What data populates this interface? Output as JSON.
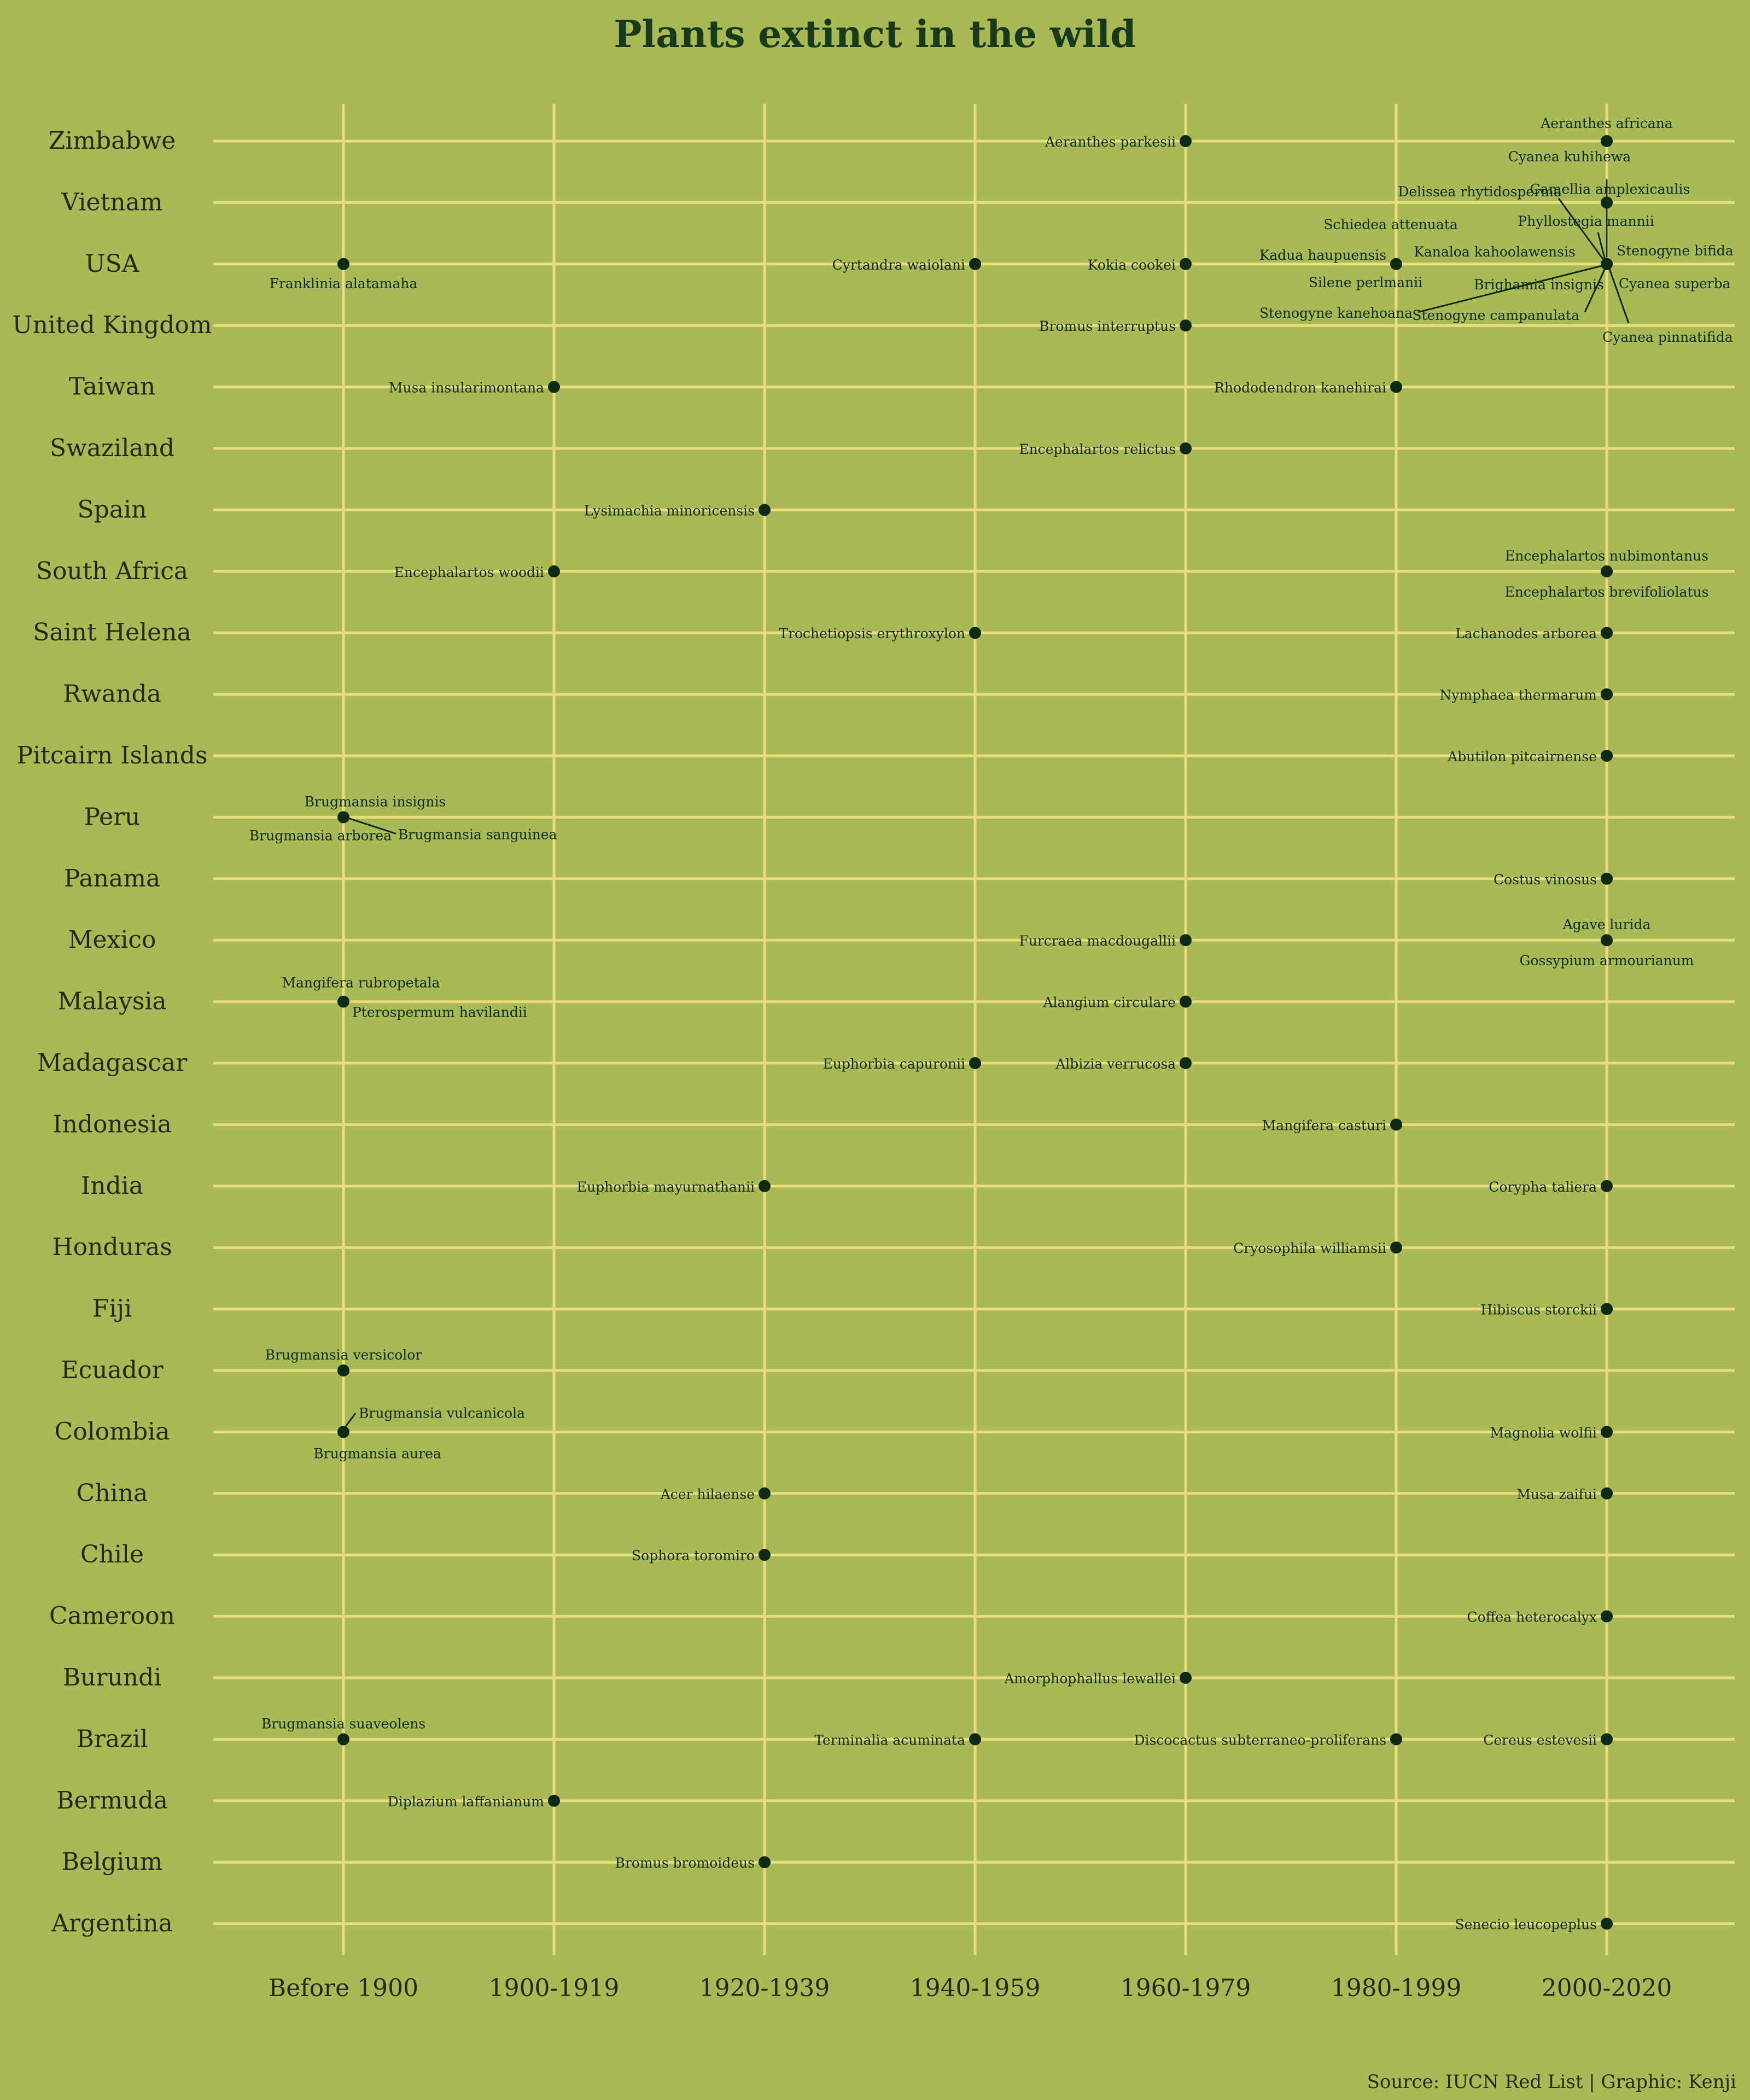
{
  "colors": {
    "background": "#a9b953",
    "grid": "#e8dc7c",
    "point": "#0d2b14",
    "title": "#163a1a",
    "text": "#1f2a10"
  },
  "chart_data": {
    "type": "scatter",
    "title": "Plants extinct in the wild",
    "caption": "Source: IUCN Red List | Graphic: Kenji",
    "xlabel": "",
    "ylabel": "",
    "x_categories": [
      "Before 1900",
      "1900-1919",
      "1920-1939",
      "1940-1959",
      "1960-1979",
      "1980-1999",
      "2000-2020"
    ],
    "y_categories": [
      "Argentina",
      "Belgium",
      "Bermuda",
      "Brazil",
      "Burundi",
      "Cameroon",
      "Chile",
      "China",
      "Colombia",
      "Ecuador",
      "Fiji",
      "Honduras",
      "India",
      "Indonesia",
      "Madagascar",
      "Malaysia",
      "Mexico",
      "Panama",
      "Peru",
      "Pitcairn Islands",
      "Rwanda",
      "Saint Helena",
      "South Africa",
      "Spain",
      "Swaziland",
      "Taiwan",
      "United Kingdom",
      "USA",
      "Vietnam",
      "Zimbabwe"
    ],
    "grid": true,
    "legend": "none",
    "points": [
      {
        "country": "Zimbabwe",
        "period": "1960-1979",
        "labels": [
          "Aeranthes parkesii"
        ]
      },
      {
        "country": "Zimbabwe",
        "period": "2000-2020",
        "labels": [
          "Aeranthes africana"
        ]
      },
      {
        "country": "Vietnam",
        "period": "2000-2020",
        "labels": [
          "Camellia amplexicaulis"
        ]
      },
      {
        "country": "USA",
        "period": "Before 1900",
        "labels": [
          "Franklinia alatamaha"
        ]
      },
      {
        "country": "USA",
        "period": "1940-1959",
        "labels": [
          "Cyrtandra waiolani"
        ]
      },
      {
        "country": "USA",
        "period": "1960-1979",
        "labels": [
          "Kokia cookei"
        ]
      },
      {
        "country": "USA",
        "period": "1980-1999",
        "labels": [
          "Kadua haupuensis",
          "Schiedea attenuata",
          "Silene perlmanii"
        ]
      },
      {
        "country": "USA",
        "period": "2000-2020",
        "labels": [
          "Cyanea kuhihewa",
          "Delissea rhytidosperma",
          "Phyllostegia mannii",
          "Kanaloa kahoolawensis",
          "Stenogyne bifida",
          "Cyanea superba",
          "Brighamia insignis",
          "Stenogyne kanehoana",
          "Stenogyne campanulata",
          "Cyanea pinnatifida"
        ]
      },
      {
        "country": "United Kingdom",
        "period": "1960-1979",
        "labels": [
          "Bromus interruptus"
        ]
      },
      {
        "country": "Taiwan",
        "period": "1900-1919",
        "labels": [
          "Musa insularimontana"
        ]
      },
      {
        "country": "Taiwan",
        "period": "1980-1999",
        "labels": [
          "Rhododendron kanehirai"
        ]
      },
      {
        "country": "Swaziland",
        "period": "1960-1979",
        "labels": [
          "Encephalartos relictus"
        ]
      },
      {
        "country": "Spain",
        "period": "1920-1939",
        "labels": [
          "Lysimachia minoricensis"
        ]
      },
      {
        "country": "South Africa",
        "period": "1900-1919",
        "labels": [
          "Encephalartos woodii"
        ]
      },
      {
        "country": "South Africa",
        "period": "2000-2020",
        "labels": [
          "Encephalartos nubimontanus",
          "Encephalartos brevifoliolatus"
        ]
      },
      {
        "country": "Saint Helena",
        "period": "1940-1959",
        "labels": [
          "Trochetiopsis erythroxylon"
        ]
      },
      {
        "country": "Saint Helena",
        "period": "2000-2020",
        "labels": [
          "Lachanodes arborea"
        ]
      },
      {
        "country": "Rwanda",
        "period": "2000-2020",
        "labels": [
          "Nymphaea thermarum"
        ]
      },
      {
        "country": "Pitcairn Islands",
        "period": "2000-2020",
        "labels": [
          "Abutilon pitcairnense"
        ]
      },
      {
        "country": "Peru",
        "period": "Before 1900",
        "labels": [
          "Brugmansia insignis",
          "Brugmansia arborea",
          "Brugmansia sanguinea"
        ]
      },
      {
        "country": "Panama",
        "period": "2000-2020",
        "labels": [
          "Costus vinosus"
        ]
      },
      {
        "country": "Mexico",
        "period": "1960-1979",
        "labels": [
          "Furcraea macdougallii"
        ]
      },
      {
        "country": "Mexico",
        "period": "2000-2020",
        "labels": [
          "Agave lurida",
          "Gossypium armourianum"
        ]
      },
      {
        "country": "Malaysia",
        "period": "Before 1900",
        "labels": [
          "Mangifera rubropetala",
          "Pterospermum havilandii"
        ]
      },
      {
        "country": "Malaysia",
        "period": "1960-1979",
        "labels": [
          "Alangium circulare"
        ]
      },
      {
        "country": "Madagascar",
        "period": "1940-1959",
        "labels": [
          "Euphorbia capuronii"
        ]
      },
      {
        "country": "Madagascar",
        "period": "1960-1979",
        "labels": [
          "Albizia verrucosa"
        ]
      },
      {
        "country": "Indonesia",
        "period": "1980-1999",
        "labels": [
          "Mangifera casturi"
        ]
      },
      {
        "country": "India",
        "period": "1920-1939",
        "labels": [
          "Euphorbia mayurnathanii"
        ]
      },
      {
        "country": "India",
        "period": "2000-2020",
        "labels": [
          "Corypha taliera"
        ]
      },
      {
        "country": "Honduras",
        "period": "1980-1999",
        "labels": [
          "Cryosophila williamsii"
        ]
      },
      {
        "country": "Fiji",
        "period": "2000-2020",
        "labels": [
          "Hibiscus storckii"
        ]
      },
      {
        "country": "Ecuador",
        "period": "Before 1900",
        "labels": [
          "Brugmansia versicolor"
        ]
      },
      {
        "country": "Colombia",
        "period": "Before 1900",
        "labels": [
          "Brugmansia vulcanicola",
          "Brugmansia aurea"
        ]
      },
      {
        "country": "Colombia",
        "period": "2000-2020",
        "labels": [
          "Magnolia wolfii"
        ]
      },
      {
        "country": "China",
        "period": "1920-1939",
        "labels": [
          "Acer hilaense"
        ]
      },
      {
        "country": "China",
        "period": "2000-2020",
        "labels": [
          "Musa zaifui"
        ]
      },
      {
        "country": "Chile",
        "period": "1920-1939",
        "labels": [
          "Sophora toromiro"
        ]
      },
      {
        "country": "Cameroon",
        "period": "2000-2020",
        "labels": [
          "Coffea heterocalyx"
        ]
      },
      {
        "country": "Burundi",
        "period": "1960-1979",
        "labels": [
          "Amorphophallus lewallei"
        ]
      },
      {
        "country": "Brazil",
        "period": "Before 1900",
        "labels": [
          "Brugmansia suaveolens"
        ]
      },
      {
        "country": "Brazil",
        "period": "1940-1959",
        "labels": [
          "Terminalia acuminata"
        ]
      },
      {
        "country": "Brazil",
        "period": "1980-1999",
        "labels": [
          "Discocactus subterraneo-proliferans"
        ]
      },
      {
        "country": "Brazil",
        "period": "2000-2020",
        "labels": [
          "Cereus estevesii"
        ]
      },
      {
        "country": "Bermuda",
        "period": "1900-1919",
        "labels": [
          "Diplazium laffanianum"
        ]
      },
      {
        "country": "Belgium",
        "period": "1920-1939",
        "labels": [
          "Bromus bromoideus"
        ]
      },
      {
        "country": "Argentina",
        "period": "2000-2020",
        "labels": [
          "Senecio leucopeplus"
        ]
      }
    ]
  }
}
